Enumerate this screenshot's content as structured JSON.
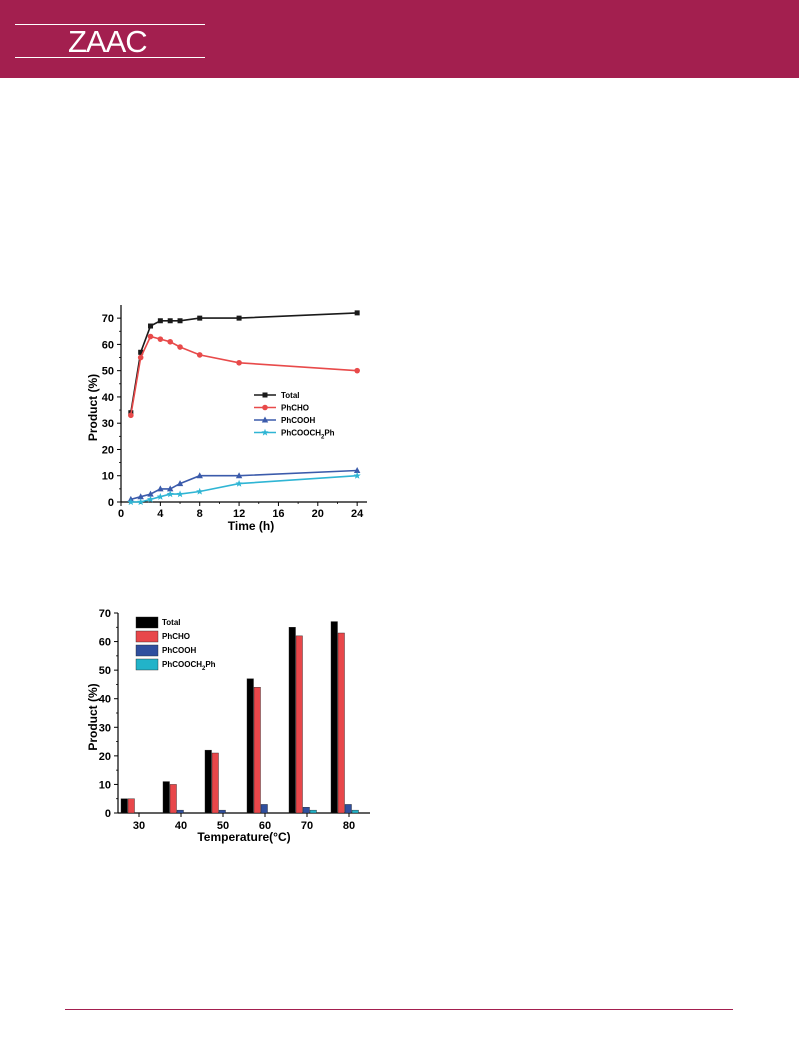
{
  "header": {
    "logo": "ZAAC",
    "color": "#a31f4f"
  },
  "chart_data": [
    {
      "type": "line",
      "xlabel": "Time (h)",
      "ylabel": "Product (%)",
      "xlim": [
        0,
        25
      ],
      "ylim": [
        0,
        75
      ],
      "xticks": [
        "0",
        "4",
        "8",
        "12",
        "16",
        "20",
        "24"
      ],
      "yticks": [
        "0",
        "10",
        "20",
        "30",
        "40",
        "50",
        "60",
        "70"
      ],
      "legend_position": "center-right",
      "x": [
        1,
        2,
        3,
        4,
        5,
        6,
        8,
        12,
        24
      ],
      "series": [
        {
          "name": "Total",
          "color": "#1a1a1a",
          "marker": "square",
          "values": [
            34,
            57,
            67,
            69,
            69,
            69,
            70,
            70,
            72
          ]
        },
        {
          "name": "PhCHO",
          "color": "#e84a4a",
          "marker": "circle",
          "values": [
            33,
            55,
            63,
            62,
            61,
            59,
            56,
            53,
            50
          ]
        },
        {
          "name": "PhCOOH",
          "color": "#3b5bab",
          "marker": "triangle",
          "values": [
            1,
            2,
            3,
            5,
            5,
            7,
            10,
            10,
            12
          ]
        },
        {
          "name": "PhCOOCH2Ph",
          "legend_main": "PhCOOCH",
          "legend_sub": "2",
          "legend_tail": "Ph",
          "color": "#2fb5d4",
          "marker": "star",
          "values": [
            0,
            0,
            1,
            2,
            3,
            3,
            4,
            7,
            10
          ]
        }
      ]
    },
    {
      "type": "bar",
      "xlabel": "Temperature(°C)",
      "ylabel": "Product (%)",
      "ylim": [
        0,
        70
      ],
      "yticks": [
        "0",
        "10",
        "20",
        "30",
        "40",
        "50",
        "60",
        "70"
      ],
      "categories": [
        "30",
        "40",
        "50",
        "60",
        "70",
        "80"
      ],
      "legend_position": "top-left",
      "series": [
        {
          "name": "Total",
          "color": "#000000",
          "values": [
            5,
            11,
            22,
            47,
            65,
            67
          ]
        },
        {
          "name": "PhCHO",
          "color": "#e8474a",
          "values": [
            5,
            10,
            21,
            44,
            62,
            63
          ]
        },
        {
          "name": "PhCOOH",
          "color": "#2f4f9e",
          "values": [
            0,
            1,
            1,
            3,
            2,
            3
          ]
        },
        {
          "name": "PhCOOCH2Ph",
          "legend_main": "PhCOOCH",
          "legend_sub": "2",
          "legend_tail": "Ph",
          "color": "#22b3c9",
          "values": [
            0,
            0,
            0,
            0,
            1,
            1
          ]
        }
      ]
    }
  ]
}
